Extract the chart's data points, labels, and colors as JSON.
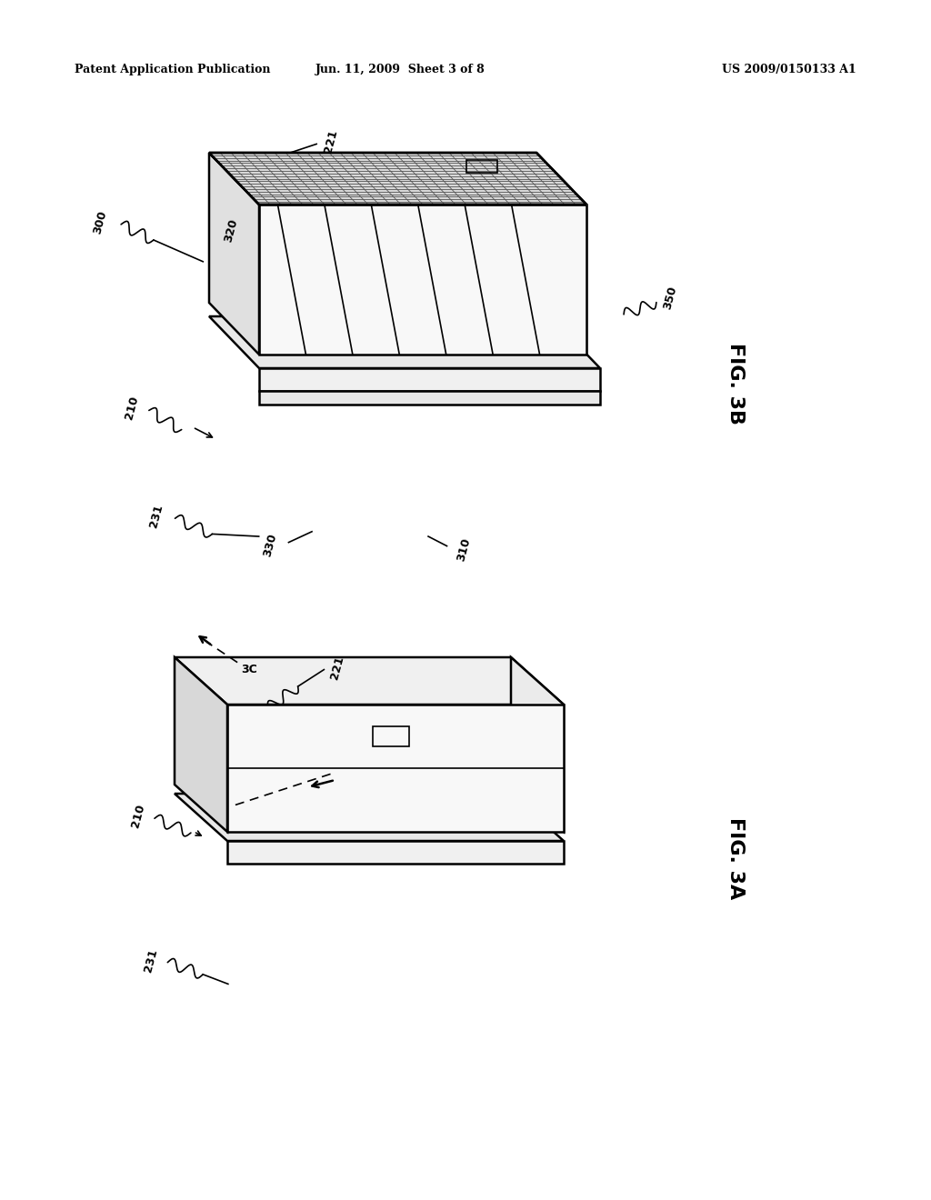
{
  "bg_color": "#ffffff",
  "line_color": "#000000",
  "header_left": "Patent Application Publication",
  "header_center": "Jun. 11, 2009  Sheet 3 of 8",
  "header_right": "US 2009/0150133 A1",
  "fig3b_label": "FIG. 3B",
  "fig3a_label": "FIG. 3A"
}
